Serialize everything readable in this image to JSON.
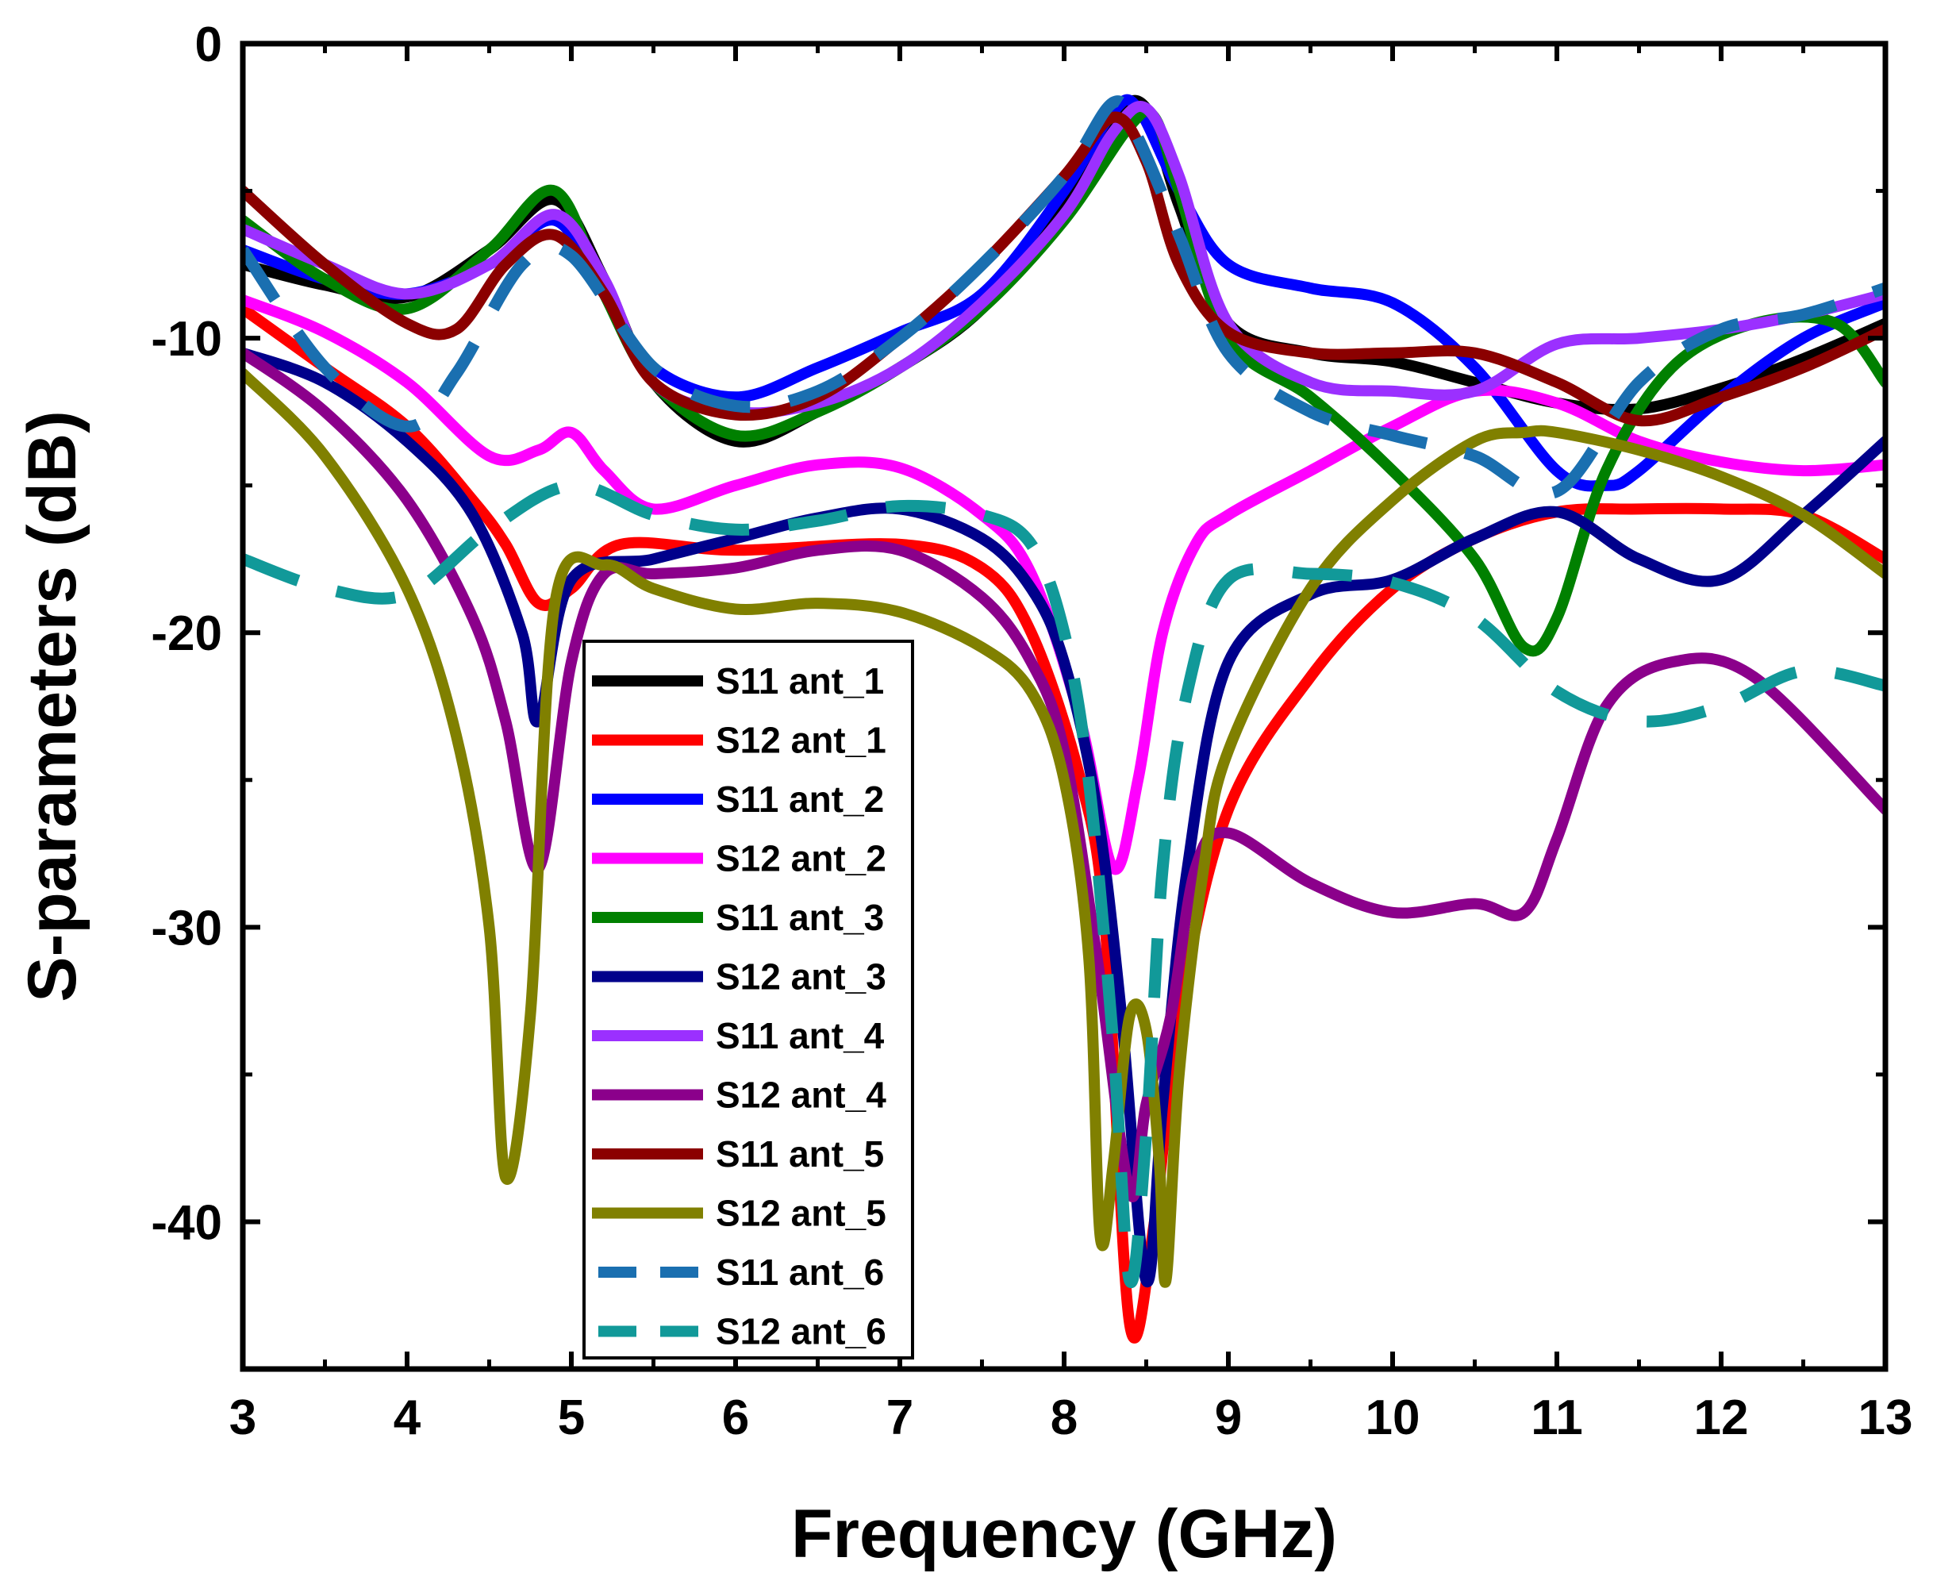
{
  "chart_data": {
    "type": "line",
    "title": "",
    "xlabel": "Frequency (GHz)",
    "ylabel": "S-parameters (dB)",
    "xlim": [
      3,
      13
    ],
    "ylim": [
      -45,
      0
    ],
    "xticks": [
      3,
      4,
      5,
      6,
      7,
      8,
      9,
      10,
      11,
      12,
      13
    ],
    "yticks": [
      0,
      -10,
      -20,
      -30,
      -40
    ],
    "xtick_labels": [
      "3",
      "4",
      "5",
      "6",
      "7",
      "8",
      "9",
      "10",
      "11",
      "12",
      "13"
    ],
    "ytick_labels": [
      "0",
      "-10",
      "-20",
      "-30",
      "-40"
    ],
    "grid": false,
    "legend_position": "center",
    "series": [
      {
        "name": "S11 ant_1",
        "color": "#000000",
        "dash": false,
        "x": [
          3,
          3.5,
          4,
          4.5,
          4.9,
          5.2,
          5.5,
          6,
          6.5,
          7,
          7.5,
          8,
          8.3,
          8.5,
          8.7,
          9,
          9.5,
          10,
          10.5,
          11,
          11.5,
          12,
          12.5,
          13
        ],
        "y": [
          -7.5,
          -8.2,
          -8.6,
          -7,
          -5.3,
          -8,
          -11.5,
          -13.5,
          -12.5,
          -11,
          -9,
          -5.5,
          -2.5,
          -2.2,
          -5.5,
          -9.5,
          -10.5,
          -10.8,
          -11.5,
          -12.2,
          -12.4,
          -11.7,
          -10.7,
          -9.5
        ]
      },
      {
        "name": "S12 ant_1",
        "color": "#ff0000",
        "dash": false,
        "x": [
          3,
          3.5,
          4,
          4.4,
          4.6,
          4.8,
          5,
          5.3,
          6,
          7,
          7.5,
          7.8,
          8.1,
          8.25,
          8.4,
          8.55,
          8.7,
          9,
          9.5,
          10,
          10.5,
          11,
          11.5,
          12,
          12.5,
          13
        ],
        "y": [
          -9,
          -11,
          -13,
          -15.5,
          -17,
          -19,
          -18.5,
          -17,
          -17.2,
          -17,
          -17.8,
          -20,
          -25,
          -30,
          -43.5,
          -40,
          -33,
          -26,
          -21.5,
          -18.5,
          -16.8,
          -15.9,
          -15.8,
          -15.8,
          -16,
          -17.5
        ]
      },
      {
        "name": "S11 ant_2",
        "color": "#0000ff",
        "dash": false,
        "x": [
          3,
          3.5,
          4,
          4.5,
          4.9,
          5.2,
          5.5,
          6,
          6.5,
          7,
          7.5,
          8,
          8.3,
          8.45,
          8.7,
          9,
          9.5,
          10,
          10.5,
          11,
          11.3,
          11.5,
          12,
          12.5,
          13
        ],
        "y": [
          -7,
          -8,
          -8.5,
          -7.5,
          -6,
          -8.5,
          -11,
          -12,
          -11,
          -9.8,
          -8.5,
          -5,
          -2.3,
          -2.2,
          -5,
          -7.5,
          -8.3,
          -8.8,
          -11,
          -14.5,
          -15,
          -14.5,
          -12,
          -10,
          -8.8
        ]
      },
      {
        "name": "S12 ant_2",
        "color": "#ff00ff",
        "dash": false,
        "x": [
          3,
          3.5,
          4,
          4.5,
          4.8,
          5,
          5.2,
          5.5,
          6,
          6.5,
          7,
          7.5,
          7.8,
          8.1,
          8.3,
          8.45,
          8.6,
          8.8,
          9,
          9.5,
          10,
          10.5,
          11,
          11.5,
          12,
          12.5,
          13
        ],
        "y": [
          -8.7,
          -9.8,
          -11.5,
          -14,
          -13.8,
          -13.2,
          -14.5,
          -15.8,
          -15,
          -14.3,
          -14.4,
          -16,
          -18,
          -23,
          -28,
          -25,
          -20,
          -17,
          -16,
          -14.5,
          -13,
          -11.8,
          -12.2,
          -13.5,
          -14.2,
          -14.5,
          -14.3
        ]
      },
      {
        "name": "S11 ant_3",
        "color": "#008000",
        "dash": false,
        "x": [
          3,
          3.5,
          4,
          4.5,
          4.9,
          5.2,
          5.5,
          6,
          6.5,
          7,
          7.5,
          8,
          8.4,
          8.55,
          8.7,
          9,
          9.5,
          10,
          10.5,
          10.8,
          11,
          11.3,
          11.7,
          12.2,
          12.7,
          13
        ],
        "y": [
          -6,
          -8,
          -9,
          -7,
          -5,
          -8.5,
          -11.5,
          -13.3,
          -12.5,
          -11,
          -9,
          -6,
          -2.8,
          -2.5,
          -5,
          -10,
          -12,
          -14.5,
          -17.5,
          -20.5,
          -19.5,
          -14.5,
          -11,
          -9.5,
          -9.5,
          -11.5
        ]
      },
      {
        "name": "S12 ant_3",
        "color": "#00008b",
        "dash": false,
        "x": [
          3,
          3.5,
          4,
          4.4,
          4.7,
          4.8,
          5,
          5.5,
          6,
          6.5,
          7,
          7.5,
          7.8,
          8,
          8.2,
          8.35,
          8.5,
          8.6,
          8.75,
          9,
          9.5,
          10,
          10.5,
          11,
          11.5,
          12,
          12.5,
          13
        ],
        "y": [
          -10.5,
          -11.5,
          -13.5,
          -16,
          -20,
          -23,
          -18.2,
          -17.5,
          -16.8,
          -16.1,
          -15.8,
          -16.8,
          -18.5,
          -21,
          -26,
          -33,
          -42,
          -36,
          -28,
          -21,
          -18.7,
          -18.2,
          -16.8,
          -15.9,
          -17.5,
          -18.2,
          -16,
          -13.5
        ]
      },
      {
        "name": "S11 ant_4",
        "color": "#9b30ff",
        "dash": false,
        "x": [
          3,
          3.5,
          4,
          4.5,
          4.9,
          5.2,
          5.5,
          6,
          6.5,
          7,
          7.5,
          8,
          8.3,
          8.5,
          8.7,
          9,
          9.5,
          10,
          10.5,
          11,
          11.5,
          12,
          12.5,
          13
        ],
        "y": [
          -6.3,
          -7.5,
          -8.5,
          -7.5,
          -5.8,
          -8,
          -11.5,
          -12.5,
          -12.2,
          -11,
          -8.8,
          -5.8,
          -3,
          -2.2,
          -4.5,
          -9.5,
          -11.5,
          -11.8,
          -11.8,
          -10.2,
          -10,
          -9.7,
          -9.2,
          -8.5
        ]
      },
      {
        "name": "S12 ant_4",
        "color": "#8b008b",
        "dash": false,
        "x": [
          3,
          3.5,
          4,
          4.4,
          4.6,
          4.8,
          5,
          5.2,
          5.5,
          6,
          6.5,
          7,
          7.5,
          7.8,
          8,
          8.2,
          8.4,
          8.5,
          8.65,
          8.8,
          9,
          9.5,
          10,
          10.5,
          10.8,
          11,
          11.3,
          11.7,
          12.2,
          13
        ],
        "y": [
          -10.5,
          -12.5,
          -15.5,
          -19.5,
          -23,
          -28,
          -21,
          -18,
          -18,
          -17.8,
          -17.2,
          -17.2,
          -18.8,
          -21,
          -24,
          -31,
          -39,
          -36,
          -33,
          -28,
          -26.8,
          -28.5,
          -29.5,
          -29.2,
          -29.5,
          -27,
          -22.5,
          -21,
          -21.5,
          -26
        ]
      },
      {
        "name": "S11 ant_5",
        "color": "#8b0000",
        "dash": false,
        "x": [
          3,
          3.5,
          4,
          4.3,
          4.6,
          4.9,
          5.2,
          5.5,
          6,
          6.5,
          7,
          7.5,
          8,
          8.3,
          8.5,
          8.7,
          9,
          9.5,
          10,
          10.5,
          11,
          11.5,
          12,
          12.5,
          13
        ],
        "y": [
          -5,
          -7.5,
          -9.5,
          -9.7,
          -7.5,
          -6.5,
          -8.5,
          -11.5,
          -12.6,
          -12,
          -10,
          -7.5,
          -4.5,
          -2.5,
          -4,
          -7.5,
          -9.8,
          -10.5,
          -10.5,
          -10.5,
          -11.5,
          -12.8,
          -12,
          -11,
          -9.7
        ]
      },
      {
        "name": "S12 ant_5",
        "color": "#808000",
        "dash": false,
        "x": [
          3,
          3.5,
          4,
          4.3,
          4.5,
          4.6,
          4.75,
          4.9,
          5.2,
          5.5,
          6,
          6.5,
          7,
          7.5,
          7.8,
          8,
          8.15,
          8.22,
          8.3,
          8.4,
          8.5,
          8.58,
          8.62,
          8.7,
          8.85,
          9,
          9.5,
          10,
          10.5,
          10.8,
          11,
          11.5,
          12,
          12.5,
          13
        ],
        "y": [
          -11.2,
          -14,
          -18.5,
          -23.5,
          -30,
          -38.5,
          -33,
          -19,
          -17.7,
          -18.5,
          -19.2,
          -19,
          -19.3,
          -20.5,
          -22,
          -25,
          -31,
          -40.5,
          -38,
          -33,
          -33.5,
          -38,
          -42,
          -35,
          -28,
          -24,
          -18.5,
          -15.5,
          -13.5,
          -13.2,
          -13.2,
          -13.8,
          -14.7,
          -16,
          -18
        ]
      },
      {
        "name": "S11 ant_6",
        "color": "#1a6fb0",
        "dash": true,
        "x": [
          3,
          3.5,
          4,
          4.3,
          4.7,
          5,
          5.5,
          6,
          6.5,
          7,
          7.5,
          8,
          8.3,
          8.45,
          8.7,
          9,
          9.5,
          10,
          10.5,
          11,
          11.5,
          12,
          12.5,
          13
        ],
        "y": [
          -7,
          -11,
          -13,
          -11.2,
          -7.5,
          -7.2,
          -11,
          -12.3,
          -11.8,
          -10,
          -7.5,
          -4.5,
          -2,
          -3.2,
          -6.5,
          -10.5,
          -12.5,
          -13.3,
          -14,
          -15.2,
          -11.5,
          -9.7,
          -9.2,
          -8.3
        ]
      },
      {
        "name": "S12 ant_6",
        "color": "#119999",
        "dash": true,
        "x": [
          3,
          3.5,
          4,
          4.5,
          5,
          5.5,
          6,
          6.5,
          7,
          7.5,
          7.8,
          8,
          8.15,
          8.3,
          8.4,
          8.5,
          8.6,
          8.75,
          9,
          9.5,
          10,
          10.5,
          11,
          11.5,
          12,
          12.5,
          13
        ],
        "y": [
          -17.5,
          -18.5,
          -18.7,
          -16.5,
          -15,
          -16,
          -16.5,
          -16.2,
          -15.7,
          -16,
          -17,
          -20,
          -25,
          -34,
          -42,
          -37,
          -28,
          -22,
          -18.2,
          -18,
          -18.3,
          -19.5,
          -22,
          -23,
          -22.5,
          -21.3,
          -21.8
        ]
      }
    ]
  }
}
